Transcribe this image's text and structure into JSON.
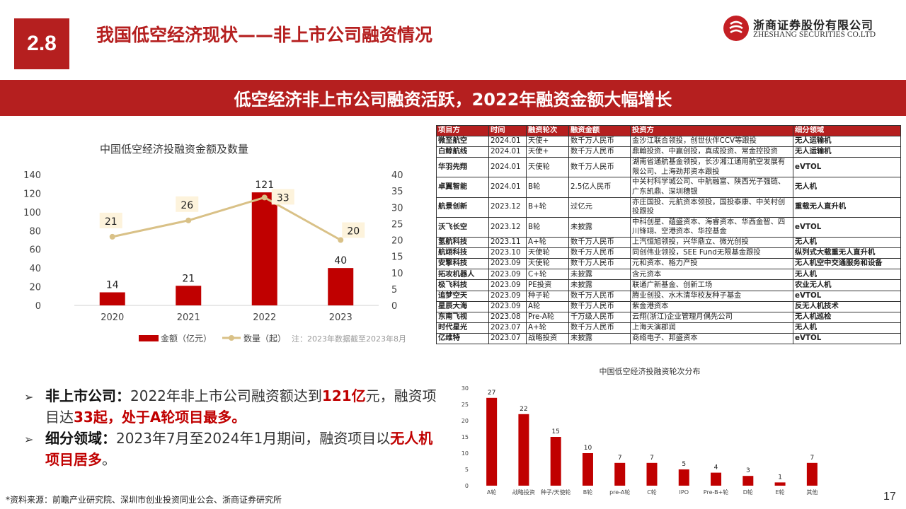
{
  "header": {
    "section_num": "2.8",
    "title": "我国低空经济现状——非上市公司融资情况",
    "logo_cn": "浙商证券股份有限公司",
    "logo_en": "ZHESHANG SECURITIES CO.LTD"
  },
  "banner": "低空经济非上市公司融资活跃，2022年融资金额大幅增长",
  "chart_data": [
    {
      "type": "bar+line",
      "title": "中国低空经济投融资金额及数量",
      "categories": [
        "2020",
        "2021",
        "2022",
        "2023"
      ],
      "series": [
        {
          "name": "金额（亿元）",
          "type": "bar",
          "axis": "left",
          "values": [
            14,
            21,
            121,
            40
          ]
        },
        {
          "name": "数量（起）",
          "type": "line",
          "axis": "right",
          "values": [
            21,
            26,
            33,
            20
          ]
        }
      ],
      "ylim_left": [
        0,
        140
      ],
      "yticks_left": [
        "0",
        "20",
        "40",
        "60",
        "80",
        "100",
        "120",
        "140"
      ],
      "ylim_right": [
        0,
        40
      ],
      "yticks_right": [
        "0",
        "5",
        "10",
        "15",
        "20",
        "25",
        "30",
        "35",
        "40"
      ],
      "note": "注：2023年数据截至2023年8月",
      "colors": {
        "bar": "#c00000",
        "line": "#d9c187"
      },
      "legend_position": "bottom"
    },
    {
      "type": "bar",
      "title": "中国低空经济投融资轮次分布",
      "categories": [
        "A轮",
        "战略投资",
        "种子/天使轮",
        "B轮",
        "pre-A轮",
        "C轮",
        "IPO",
        "Pre-B+轮",
        "D轮",
        "E轮",
        "其他"
      ],
      "values": [
        27,
        22,
        15,
        10,
        7,
        7,
        5,
        4,
        3,
        1,
        7
      ],
      "ylim": [
        0,
        30
      ],
      "yticks": [
        "0",
        "5",
        "10",
        "15",
        "20",
        "25",
        "30"
      ],
      "colors": {
        "bar": "#c00000"
      }
    }
  ],
  "table": {
    "headers": [
      "项目方",
      "时间",
      "融资轮次",
      "融资金额",
      "投资方",
      "细分领域"
    ],
    "rows": [
      [
        "微至航空",
        "2024.01",
        "天使+",
        "数千万人民币",
        "金沙江联合领投，创世伙伴CCV等跟投",
        "无人运输机"
      ],
      [
        "白鲸航线",
        "2024.01",
        "天使+",
        "数千万人民币",
        "鼎翰投资、中赢创投，真成投资、常金控投资",
        "无人运输机"
      ],
      [
        "华羽先翔",
        "2024.01",
        "天使轮",
        "数千万人民币",
        "湖南省通航基金领投，长沙湘江通用航空发展有限公司、上海劲邦资本跟投",
        "eVTOL"
      ],
      [
        "卓翼智能",
        "2024.01",
        "B轮",
        "2.5亿人民币",
        "中关村科学城公司、中航融富、陕西光子强链、广东凯鼎、深圳穗银",
        "无人机"
      ],
      [
        "航景创新",
        "2023.12",
        "B+轮",
        "过亿元",
        "亦庄国投、元航资本领投，国投泰康、中关村创投跟投",
        "重载无人直升机"
      ],
      [
        "沃飞长空",
        "2023.12",
        "B轮",
        "未披露",
        "中科创星、蕴盛资本、海睿资本、华西金智、四川锋翊、空港资本、华控基金",
        "eVTOL"
      ],
      [
        "氢航科技",
        "2023.11",
        "A+轮",
        "数千万人民币",
        "上汽恒旭领投，兴华鼎立、微光创投",
        "无人机"
      ],
      [
        "航翊科技",
        "2023.10",
        "天使轮",
        "数千万人民币",
        "同创伟业领投，SEE Fund无限基金跟投",
        "纵列式大载重无人直升机"
      ],
      [
        "安擎科技",
        "2023.09",
        "天使轮",
        "数千万人民币",
        "元和资本、格力产投",
        "无人机空中交通服务和设备"
      ],
      [
        "拓攻机器人",
        "2023.09",
        "C+轮",
        "未披露",
        "含元资本",
        "无人机"
      ],
      [
        "极飞科技",
        "2023.09",
        "PE投资",
        "未披露",
        "联通广新基金、创新工场",
        "农业无人机"
      ],
      [
        "追梦空天",
        "2023.09",
        "种子轮",
        "数千万人民币",
        "腾业创投、水木清华校友种子基金",
        "eVTOL"
      ],
      [
        "星辰大海",
        "2023.09",
        "A轮",
        "数千万人民币",
        "紫金港资本",
        "反无人机技术"
      ],
      [
        "东南飞视",
        "2023.08",
        "Pre-A轮",
        "千万级人民币",
        "云翔(浙江)企业管理月偶先公司",
        "无人机巡检"
      ],
      [
        "时代星光",
        "2023.07",
        "A+轮",
        "数千万人民币",
        "上海天演郡润",
        "无人机"
      ],
      [
        "亿维特",
        "2023.07",
        "战略投资",
        "未披露",
        "商络电子、邦盛资本",
        "eVTOL"
      ]
    ]
  },
  "bullets": [
    {
      "lead": "非上市公司",
      "colon": "：",
      "text1": "2022年非上市公司融资额达到",
      "hl1": "121亿",
      "text2": "元，融资项目达",
      "hl2": "33起，处于A轮项目最多。"
    },
    {
      "lead": "细分领域",
      "colon": "：",
      "text1": "2023年7月至2024年1月期间，融资项目以",
      "hl1": "无人机项目居多",
      "text2": "。"
    }
  ],
  "source": "*资料来源：前瞻产业研究院、深圳市创业投资同业公会、浙商证券研究所",
  "page_number": "17"
}
